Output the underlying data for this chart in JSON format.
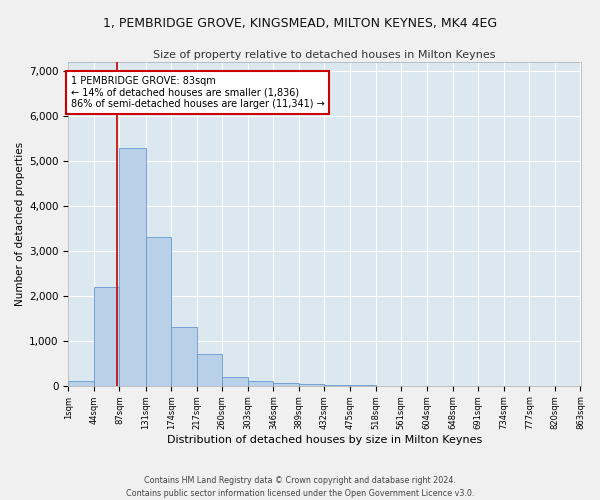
{
  "title": "1, PEMBRIDGE GROVE, KINGSMEAD, MILTON KEYNES, MK4 4EG",
  "subtitle": "Size of property relative to detached houses in Milton Keynes",
  "xlabel": "Distribution of detached houses by size in Milton Keynes",
  "ylabel": "Number of detached properties",
  "footer_line1": "Contains HM Land Registry data © Crown copyright and database right 2024.",
  "footer_line2": "Contains public sector information licensed under the Open Government Licence v3.0.",
  "annotation_line1": "1 PEMBRIDGE GROVE: 83sqm",
  "annotation_line2": "← 14% of detached houses are smaller (1,836)",
  "annotation_line3": "86% of semi-detached houses are larger (11,341) →",
  "property_line_x": 83,
  "bar_color": "#b8d0e8",
  "bar_edge_color": "#6699cc",
  "property_line_color": "#cc0000",
  "annotation_box_edge_color": "#cc0000",
  "plot_bg_color": "#dce8f0",
  "fig_bg_color": "#f0f0f0",
  "bin_edges": [
    1,
    44,
    87,
    131,
    174,
    217,
    260,
    303,
    346,
    389,
    432,
    475,
    518,
    561,
    604,
    648,
    691,
    734,
    777,
    820,
    863
  ],
  "bar_heights": [
    100,
    2200,
    5300,
    3300,
    1300,
    700,
    200,
    100,
    50,
    30,
    10,
    5,
    3,
    2,
    1,
    1,
    1,
    1,
    1,
    1
  ],
  "ylim": [
    0,
    7200
  ],
  "yticks": [
    0,
    1000,
    2000,
    3000,
    4000,
    5000,
    6000,
    7000
  ]
}
